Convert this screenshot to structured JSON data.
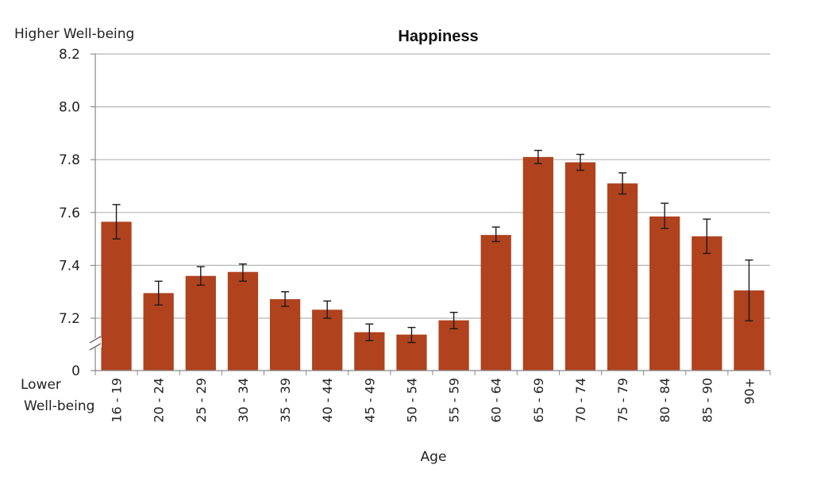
{
  "chart_data": {
    "type": "bar",
    "title": "Happiness",
    "xlabel": "Age",
    "ylabel_top": "Higher Well-being",
    "ylabel_bottom_line1": "Lower",
    "ylabel_bottom_line2": "Well-being",
    "categories": [
      "16 - 19",
      "20 - 24",
      "25 - 29",
      "30 - 34",
      "35 - 39",
      "40 - 44",
      "45 - 49",
      "50 - 54",
      "55 - 59",
      "60 - 64",
      "65 - 69",
      "70 - 74",
      "75 - 79",
      "80 - 84",
      "85 - 90",
      "90+"
    ],
    "values": [
      7.565,
      7.295,
      7.36,
      7.375,
      7.272,
      7.232,
      7.147,
      7.138,
      7.192,
      7.515,
      7.81,
      7.79,
      7.71,
      7.585,
      7.51,
      7.305
    ],
    "error_low": [
      7.5,
      7.25,
      7.325,
      7.34,
      7.245,
      7.2,
      7.115,
      7.108,
      7.16,
      7.49,
      7.785,
      7.76,
      7.67,
      7.54,
      7.445,
      7.19
    ],
    "error_high": [
      7.63,
      7.34,
      7.395,
      7.405,
      7.3,
      7.265,
      7.178,
      7.165,
      7.222,
      7.545,
      7.835,
      7.82,
      7.75,
      7.635,
      7.575,
      7.42
    ],
    "y_ticks": [
      7.2,
      7.4,
      7.6,
      7.8,
      8.0,
      8.2
    ],
    "y_tick_labels": [
      "7.2",
      "7.4",
      "7.6",
      "7.8",
      "8.0",
      "8.2"
    ],
    "y_zero_label": "0",
    "ylim": [
      7.1,
      8.2
    ],
    "axis_break": true,
    "grid": true,
    "bar_color": "#b0421e"
  }
}
